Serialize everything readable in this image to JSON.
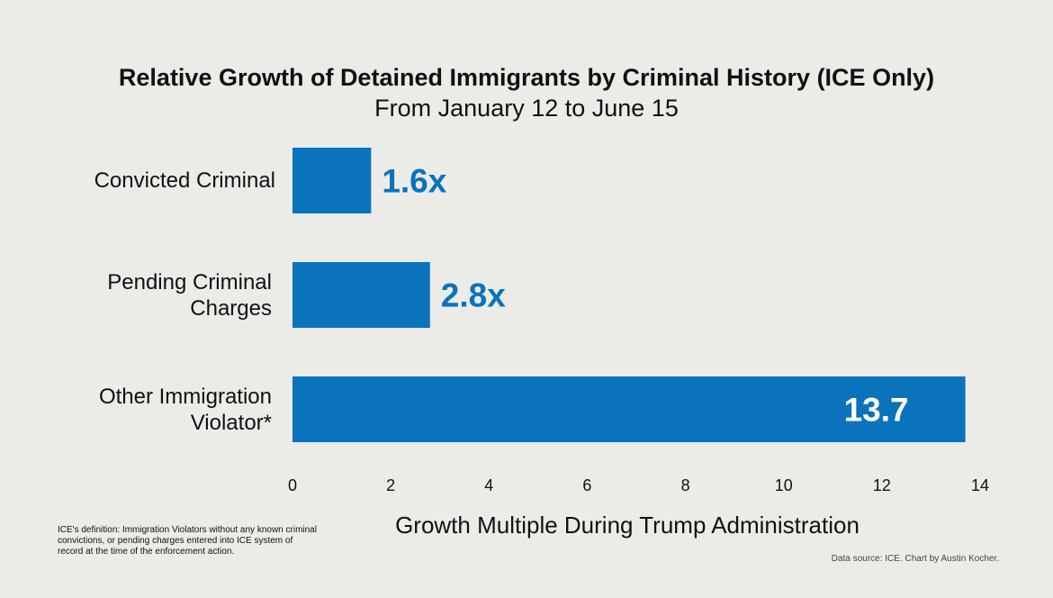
{
  "chart_data": {
    "type": "bar",
    "orientation": "horizontal",
    "title": "Relative Growth of Detained Immigrants by Criminal History (ICE Only)",
    "subtitle": "From January 12 to June 15",
    "categories": [
      "Convicted Criminal",
      "Pending Criminal\nCharges",
      "Other Immigration\nViolator*"
    ],
    "values": [
      1.6,
      2.8,
      13.7
    ],
    "data_labels": [
      "1.6x",
      "2.8x",
      "13.7"
    ],
    "xlabel": "Growth Multiple During Trump Administration",
    "ylabel": "",
    "xlim": [
      0,
      14
    ],
    "xticks": [
      "0",
      "2",
      "4",
      "6",
      "8",
      "10",
      "12",
      "14"
    ],
    "grid": false,
    "legend": "none",
    "bar_color": "#0a73bc",
    "label_color_outside": "#0a73bc",
    "label_color_inside": "#ffffff",
    "footnote": "ICE's definition: Immigration Violators without any known criminal convictions, or pending charges entered into ICE system of record at the time of the enforcement action.",
    "source": "Data source: ICE. Chart by Austin Kocher."
  }
}
